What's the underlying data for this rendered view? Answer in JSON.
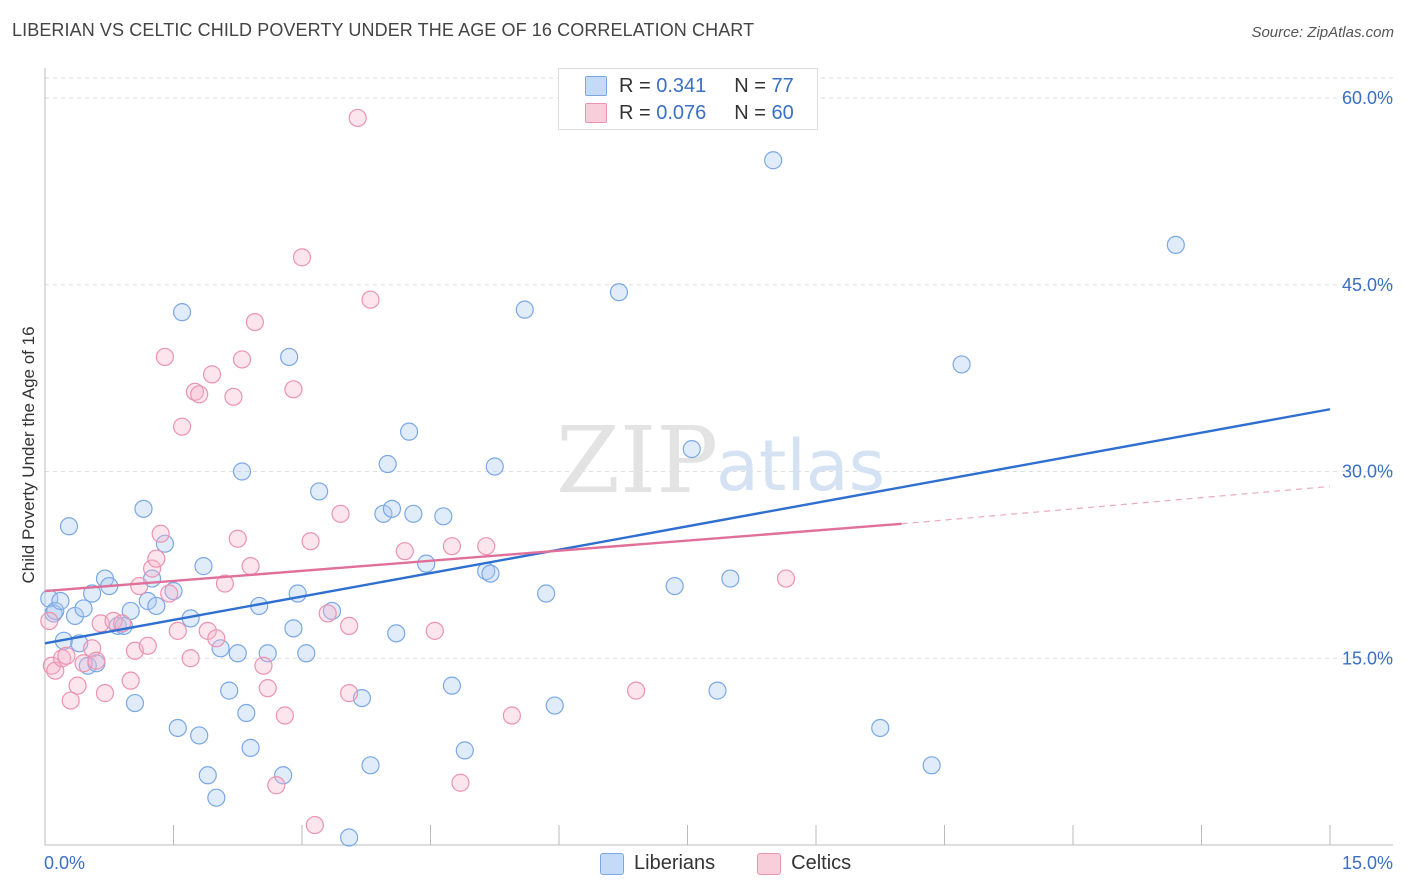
{
  "title": "LIBERIAN VS CELTIC CHILD POVERTY UNDER THE AGE OF 16 CORRELATION CHART",
  "source": "Source: ZipAtlas.com",
  "watermark": {
    "zip": "ZIP",
    "atlas": "atlas"
  },
  "legend": {
    "rows": [
      {
        "r_label": "R =",
        "r": "0.341",
        "n_label": "N =",
        "n": "77",
        "color": "#7aa8e6",
        "fill": "#c5daf6"
      },
      {
        "r_label": "R =",
        "r": "0.076",
        "n_label": "N =",
        "n": "60",
        "color": "#ec93b0",
        "fill": "#f8cedb"
      }
    ]
  },
  "bottom_legend": [
    {
      "label": "Liberians",
      "color": "#7aa8e6",
      "fill": "#c5daf6"
    },
    {
      "label": "Celtics",
      "color": "#ec93b0",
      "fill": "#f8cedb"
    }
  ],
  "chart_data": {
    "type": "scatter",
    "title": "LIBERIAN VS CELTIC CHILD POVERTY UNDER THE AGE OF 16 CORRELATION CHART",
    "xlabel": "",
    "ylabel": "Child Poverty Under the Age of 16",
    "xlim": [
      0,
      15
    ],
    "ylim": [
      0,
      60
    ],
    "x_tick_labels": [
      "0.0%",
      "15.0%"
    ],
    "y_ticks": [
      15,
      30,
      45,
      60
    ],
    "y_tick_labels": [
      "15.0%",
      "30.0%",
      "45.0%",
      "60.0%"
    ],
    "grid": true,
    "legend_position": "top-center",
    "series": [
      {
        "name": "Liberians",
        "color": "#7aa8e6",
        "points": [
          [
            0.05,
            19.8
          ],
          [
            0.1,
            18.6
          ],
          [
            0.12,
            18.8
          ],
          [
            0.18,
            19.6
          ],
          [
            0.22,
            16.4
          ],
          [
            0.28,
            25.6
          ],
          [
            0.35,
            18.4
          ],
          [
            0.4,
            16.2
          ],
          [
            0.45,
            19.0
          ],
          [
            0.5,
            14.4
          ],
          [
            0.55,
            20.2
          ],
          [
            0.6,
            14.6
          ],
          [
            0.7,
            21.4
          ],
          [
            0.75,
            20.8
          ],
          [
            0.85,
            17.6
          ],
          [
            0.92,
            17.6
          ],
          [
            1.0,
            18.8
          ],
          [
            1.05,
            11.4
          ],
          [
            1.15,
            27.0
          ],
          [
            1.2,
            19.6
          ],
          [
            1.25,
            21.4
          ],
          [
            1.3,
            19.2
          ],
          [
            1.4,
            24.2
          ],
          [
            1.5,
            20.4
          ],
          [
            1.55,
            9.4
          ],
          [
            1.6,
            42.8
          ],
          [
            1.7,
            18.2
          ],
          [
            1.8,
            8.8
          ],
          [
            1.85,
            22.4
          ],
          [
            1.9,
            5.6
          ],
          [
            2.0,
            3.8
          ],
          [
            2.05,
            15.8
          ],
          [
            2.15,
            12.4
          ],
          [
            2.25,
            15.4
          ],
          [
            2.3,
            30.0
          ],
          [
            2.35,
            10.6
          ],
          [
            2.4,
            7.8
          ],
          [
            2.5,
            19.2
          ],
          [
            2.6,
            15.4
          ],
          [
            2.78,
            5.6
          ],
          [
            2.85,
            39.2
          ],
          [
            2.9,
            17.4
          ],
          [
            2.95,
            20.2
          ],
          [
            3.05,
            15.4
          ],
          [
            3.2,
            28.4
          ],
          [
            3.35,
            18.8
          ],
          [
            3.55,
            0.6
          ],
          [
            3.7,
            11.8
          ],
          [
            3.8,
            6.4
          ],
          [
            3.95,
            26.6
          ],
          [
            4.0,
            30.6
          ],
          [
            4.05,
            27.0
          ],
          [
            4.1,
            17.0
          ],
          [
            4.25,
            33.2
          ],
          [
            4.3,
            26.6
          ],
          [
            4.45,
            22.6
          ],
          [
            4.65,
            26.4
          ],
          [
            4.75,
            12.8
          ],
          [
            4.9,
            7.6
          ],
          [
            5.15,
            22.0
          ],
          [
            5.2,
            21.8
          ],
          [
            5.25,
            30.4
          ],
          [
            5.6,
            43.0
          ],
          [
            5.85,
            20.2
          ],
          [
            5.95,
            11.2
          ],
          [
            6.7,
            44.4
          ],
          [
            7.35,
            20.8
          ],
          [
            7.55,
            31.8
          ],
          [
            7.85,
            12.4
          ],
          [
            8.0,
            21.4
          ],
          [
            8.5,
            55.0
          ],
          [
            9.75,
            9.4
          ],
          [
            10.35,
            6.4
          ],
          [
            10.7,
            38.6
          ],
          [
            13.2,
            48.2
          ]
        ],
        "trend": {
          "x": [
            0,
            15
          ],
          "y": [
            16.2,
            35.0
          ]
        }
      },
      {
        "name": "Celtics",
        "color": "#ec93b0",
        "points": [
          [
            0.05,
            18.0
          ],
          [
            0.08,
            14.4
          ],
          [
            0.12,
            14.0
          ],
          [
            0.2,
            15.0
          ],
          [
            0.25,
            15.2
          ],
          [
            0.3,
            11.6
          ],
          [
            0.38,
            12.8
          ],
          [
            0.45,
            14.6
          ],
          [
            0.55,
            15.8
          ],
          [
            0.6,
            14.8
          ],
          [
            0.65,
            17.8
          ],
          [
            0.7,
            12.2
          ],
          [
            0.8,
            18.0
          ],
          [
            0.9,
            17.8
          ],
          [
            1.0,
            13.2
          ],
          [
            1.05,
            15.6
          ],
          [
            1.1,
            20.8
          ],
          [
            1.2,
            16.0
          ],
          [
            1.25,
            22.2
          ],
          [
            1.3,
            23.0
          ],
          [
            1.35,
            25.0
          ],
          [
            1.4,
            39.2
          ],
          [
            1.45,
            20.2
          ],
          [
            1.55,
            17.2
          ],
          [
            1.6,
            33.6
          ],
          [
            1.7,
            15.0
          ],
          [
            1.75,
            36.4
          ],
          [
            1.8,
            36.2
          ],
          [
            1.9,
            17.2
          ],
          [
            1.95,
            37.8
          ],
          [
            2.0,
            16.6
          ],
          [
            2.1,
            21.0
          ],
          [
            2.2,
            36.0
          ],
          [
            2.25,
            24.6
          ],
          [
            2.3,
            39.0
          ],
          [
            2.4,
            22.4
          ],
          [
            2.45,
            42.0
          ],
          [
            2.55,
            14.4
          ],
          [
            2.6,
            12.6
          ],
          [
            2.7,
            4.8
          ],
          [
            2.8,
            10.4
          ],
          [
            2.9,
            36.6
          ],
          [
            3.0,
            47.2
          ],
          [
            3.1,
            24.4
          ],
          [
            3.15,
            1.6
          ],
          [
            3.3,
            18.6
          ],
          [
            3.45,
            26.6
          ],
          [
            3.55,
            17.6
          ],
          [
            3.55,
            12.2
          ],
          [
            3.65,
            58.4
          ],
          [
            3.8,
            43.8
          ],
          [
            4.2,
            23.6
          ],
          [
            4.55,
            17.2
          ],
          [
            4.75,
            24.0
          ],
          [
            4.85,
            5.0
          ],
          [
            5.15,
            24.0
          ],
          [
            5.45,
            10.4
          ],
          [
            6.9,
            12.4
          ],
          [
            8.65,
            21.4
          ]
        ],
        "trend": {
          "x": [
            0,
            10.0
          ],
          "y": [
            20.4,
            25.8
          ]
        },
        "trend_extension": {
          "x": [
            10.0,
            15
          ],
          "y": [
            25.8,
            28.8
          ]
        }
      }
    ]
  }
}
